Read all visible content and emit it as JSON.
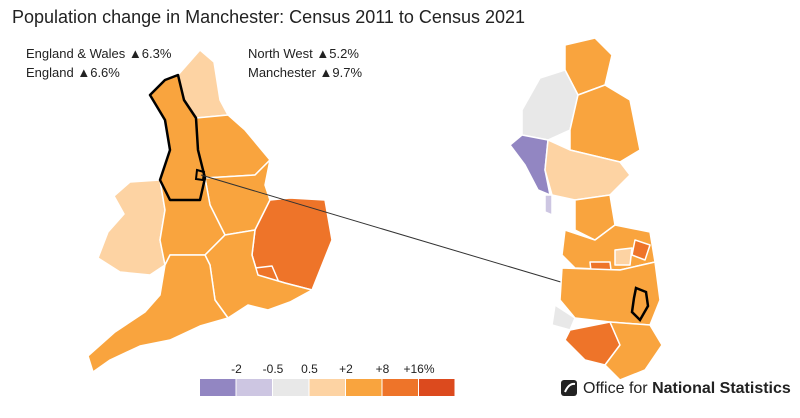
{
  "title": "Population change in Manchester: Census 2011 to Census 2021",
  "stats": [
    {
      "name": "England & Wales",
      "value": "▲6.3%"
    },
    {
      "name": "England",
      "value": "▲6.6%"
    },
    {
      "name": "North West",
      "value": "▲5.2%"
    },
    {
      "name": "Manchester",
      "value": "▲9.7%"
    }
  ],
  "legend": {
    "colors": [
      "#9286c2",
      "#cdc6e2",
      "#e8e8e8",
      "#fdd3a3",
      "#f9a43e",
      "#ee7429",
      "#dc4a1e"
    ],
    "labels": [
      "-2",
      "-0.5",
      "0.5",
      "+2",
      "+8",
      "+16%"
    ]
  },
  "logo": {
    "prefix": "Office for",
    "name": "National Statistics"
  }
}
